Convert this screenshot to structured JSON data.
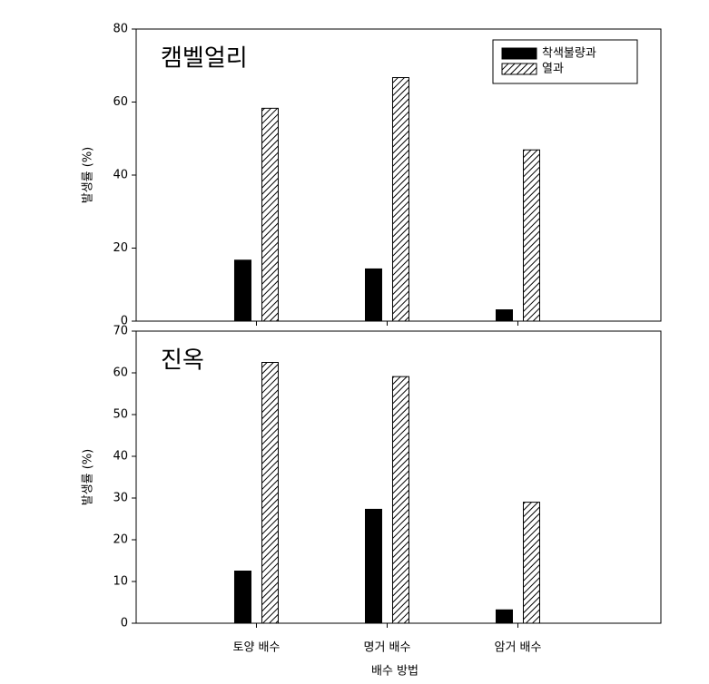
{
  "chart_data": [
    {
      "type": "bar",
      "title": "캠벨얼리",
      "ylabel": "발생률 (%)",
      "series": [
        {
          "name": "착색불량과",
          "color": "#000000",
          "values": [
            16.7,
            14.3,
            3.1
          ]
        },
        {
          "name": "열과",
          "color": "hatch",
          "values": [
            58.3,
            66.7,
            46.9
          ]
        }
      ],
      "ylim": [
        0,
        80
      ],
      "yticks": [
        0,
        20,
        40,
        60,
        80
      ],
      "legend": "upper right"
    },
    {
      "type": "bar",
      "title": "진옥",
      "ylabel": "발생률 (%)",
      "xlabel": "배수 방법",
      "categories": [
        "토양 배수",
        "명거 배수",
        "암거 배수"
      ],
      "series": [
        {
          "color": "#000000",
          "values": [
            12.5,
            27.3,
            3.2
          ]
        },
        {
          "color": "hatch",
          "values": [
            62.5,
            59.1,
            29.0
          ]
        }
      ],
      "ylim": [
        0,
        70
      ],
      "yticks": [
        0,
        10,
        20,
        30,
        40,
        50,
        60,
        70
      ]
    }
  ]
}
